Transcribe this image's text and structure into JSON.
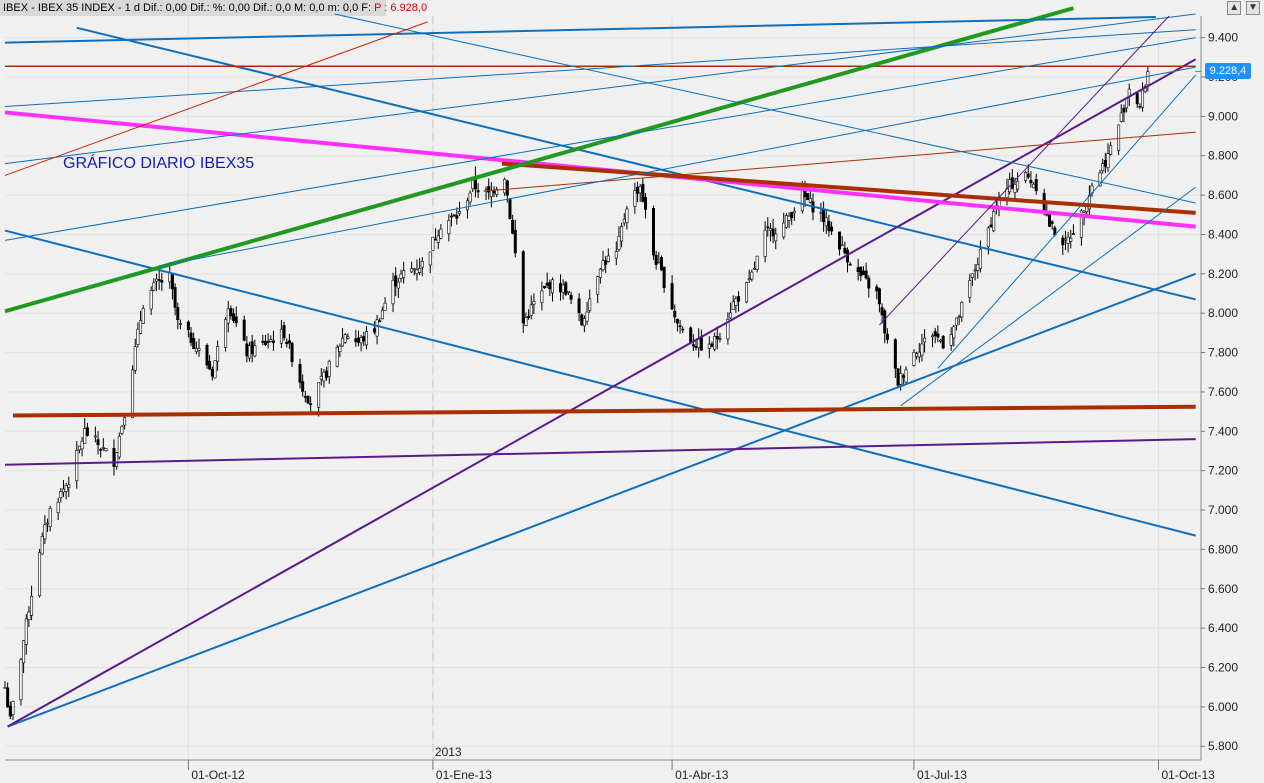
{
  "header": {
    "text": "IBEX - IBEX 35 INDEX - 1 d Dif.: 0,00 Dif.: %: 0,00 Dif.: 0,0 M: 0,0 m: 0,0 F:",
    "price_label": "P : 6.928,0"
  },
  "last_price": "9.228,4",
  "chart_title": "GRÁFICO DIARIO IBEX35",
  "year_marker": "2013",
  "chart_data": {
    "type": "candlestick",
    "title": "GRÁFICO DIARIO IBEX35",
    "x_tick_labels": [
      "01-Oct-12",
      "01-Ene-13",
      "01-Abr-13",
      "01-Jul-13",
      "01-Oct-13"
    ],
    "y_tick_labels": [
      "9.400",
      "9.200",
      "9.000",
      "8.800",
      "8.600",
      "8.400",
      "8.200",
      "8.000",
      "7.800",
      "7.600",
      "7.400",
      "7.200",
      "7.000",
      "6.800",
      "6.600",
      "6.400",
      "6.200",
      "6.000",
      "5.800"
    ],
    "y_ticks": [
      9400,
      9200,
      9000,
      8800,
      8600,
      8400,
      8200,
      8000,
      7800,
      7600,
      7400,
      7200,
      7000,
      6800,
      6600,
      6400,
      6200,
      6000,
      5800
    ],
    "ylim": [
      5730,
      9510
    ],
    "x_range": [
      "2012-07-24",
      "2013-10-17"
    ],
    "last_value": 9228.4,
    "series_anchors": [
      [
        "2012-07-24",
        6100
      ],
      [
        "2012-07-26",
        5930
      ],
      [
        "2012-08-02",
        6500
      ],
      [
        "2012-08-06",
        6800
      ],
      [
        "2012-08-10",
        7000
      ],
      [
        "2012-08-17",
        7150
      ],
      [
        "2012-08-23",
        7400
      ],
      [
        "2012-08-29",
        7320
      ],
      [
        "2012-09-03",
        7250
      ],
      [
        "2012-09-07",
        7500
      ],
      [
        "2012-09-14",
        8050
      ],
      [
        "2012-09-19",
        8150
      ],
      [
        "2012-09-24",
        8180
      ],
      [
        "2012-09-27",
        7950
      ],
      [
        "2012-10-02",
        7870
      ],
      [
        "2012-10-10",
        7700
      ],
      [
        "2012-10-16",
        8050
      ],
      [
        "2012-10-23",
        7800
      ],
      [
        "2012-10-30",
        7850
      ],
      [
        "2012-11-06",
        7900
      ],
      [
        "2012-11-13",
        7620
      ],
      [
        "2012-11-16",
        7550
      ],
      [
        "2012-11-22",
        7700
      ],
      [
        "2012-11-29",
        7900
      ],
      [
        "2012-12-04",
        7850
      ],
      [
        "2012-12-10",
        7920
      ],
      [
        "2012-12-17",
        8150
      ],
      [
        "2012-12-21",
        8200
      ],
      [
        "2012-12-28",
        8250
      ],
      [
        "2013-01-04",
        8450
      ],
      [
        "2013-01-11",
        8500
      ],
      [
        "2013-01-16",
        8650
      ],
      [
        "2013-01-22",
        8600
      ],
      [
        "2013-01-28",
        8700
      ],
      [
        "2013-02-01",
        8300
      ],
      [
        "2013-02-04",
        7950
      ],
      [
        "2013-02-08",
        8050
      ],
      [
        "2013-02-14",
        8150
      ],
      [
        "2013-02-20",
        8120
      ],
      [
        "2013-02-26",
        7950
      ],
      [
        "2013-03-05",
        8250
      ],
      [
        "2013-03-11",
        8300
      ],
      [
        "2013-03-15",
        8550
      ],
      [
        "2013-03-20",
        8650
      ],
      [
        "2013-03-25",
        8300
      ],
      [
        "2013-03-28",
        8200
      ],
      [
        "2013-04-03",
        7950
      ],
      [
        "2013-04-09",
        7850
      ],
      [
        "2013-04-15",
        7820
      ],
      [
        "2013-04-19",
        7900
      ],
      [
        "2013-04-24",
        8050
      ],
      [
        "2013-04-30",
        8150
      ],
      [
        "2013-05-06",
        8400
      ],
      [
        "2013-05-13",
        8450
      ],
      [
        "2013-05-20",
        8600
      ],
      [
        "2013-05-27",
        8500
      ],
      [
        "2013-06-03",
        8350
      ],
      [
        "2013-06-10",
        8200
      ],
      [
        "2013-06-17",
        8100
      ],
      [
        "2013-06-21",
        7850
      ],
      [
        "2013-06-25",
        7650
      ],
      [
        "2013-07-01",
        7800
      ],
      [
        "2013-07-08",
        7900
      ],
      [
        "2013-07-12",
        7850
      ],
      [
        "2013-07-17",
        7950
      ],
      [
        "2013-07-22",
        8150
      ],
      [
        "2013-07-26",
        8300
      ],
      [
        "2013-08-01",
        8550
      ],
      [
        "2013-08-06",
        8650
      ],
      [
        "2013-08-12",
        8700
      ],
      [
        "2013-08-16",
        8650
      ],
      [
        "2013-08-21",
        8450
      ],
      [
        "2013-08-27",
        8350
      ],
      [
        "2013-09-02",
        8500
      ],
      [
        "2013-09-06",
        8650
      ],
      [
        "2013-09-12",
        8800
      ],
      [
        "2013-09-17",
        9000
      ],
      [
        "2013-09-20",
        9150
      ],
      [
        "2013-09-24",
        9050
      ],
      [
        "2013-09-27",
        9228
      ]
    ],
    "trendlines": [
      {
        "color": "#0d6fbd",
        "width": 2,
        "from": [
          "2012-07-25",
          5900
        ],
        "to": [
          "2013-10-15",
          8200
        ]
      },
      {
        "color": "#0d6fbd",
        "width": 2,
        "from": [
          "2012-07-24",
          8420
        ],
        "to": [
          "2013-10-15",
          6870
        ]
      },
      {
        "color": "#0d6fbd",
        "width": 2,
        "from": [
          "2012-08-20",
          9450
        ],
        "to": [
          "2013-10-15",
          8070
        ]
      },
      {
        "color": "#5a1a8c",
        "width": 2,
        "from": [
          "2012-07-25",
          5900
        ],
        "to": [
          "2013-10-15",
          9290
        ]
      },
      {
        "color": "#5a1a8c",
        "width": 2,
        "from": [
          "2012-07-24",
          7230
        ],
        "to": [
          "2013-10-15",
          7360
        ]
      },
      {
        "color": "#ff30ff",
        "width": 4,
        "from": [
          "2012-07-24",
          9020
        ],
        "to": [
          "2013-10-15",
          8440
        ]
      },
      {
        "color": "#a83000",
        "width": 4,
        "from": [
          "2012-07-27",
          7480
        ],
        "to": [
          "2013-10-15",
          7525
        ]
      },
      {
        "color": "#a83000",
        "width": 4,
        "from": [
          "2013-01-27",
          8760
        ],
        "to": [
          "2013-10-15",
          8510
        ]
      },
      {
        "color": "#a83000",
        "width": 1.5,
        "from": [
          "2012-07-24",
          9255
        ],
        "to": [
          "2013-10-15",
          9255
        ]
      },
      {
        "color": "#a83000",
        "width": 1,
        "from": [
          "2013-01-20",
          8620
        ],
        "to": [
          "2013-10-15",
          8920
        ]
      },
      {
        "color": "#1f9a1f",
        "width": 4,
        "from": [
          "2012-07-24",
          8010
        ],
        "to": [
          "2013-08-30",
          9550
        ]
      },
      {
        "color": "#0d6fbd",
        "width": 2,
        "from": [
          "2012-07-24",
          9375
        ],
        "to": [
          "2013-09-30",
          9505
        ]
      },
      {
        "color": "#0d6fbd",
        "width": 1,
        "from": [
          "2012-07-24",
          9050
        ],
        "to": [
          "2013-10-15",
          9440
        ]
      },
      {
        "color": "#0d6fbd",
        "width": 1,
        "from": [
          "2012-07-24",
          8370
        ],
        "to": [
          "2013-10-15",
          9400
        ]
      },
      {
        "color": "#0d6fbd",
        "width": 1,
        "from": [
          "2012-07-24",
          8760
        ],
        "to": [
          "2013-10-15",
          9520
        ]
      },
      {
        "color": "#0d6fbd",
        "width": 1,
        "from": [
          "2012-09-20",
          8240
        ],
        "to": [
          "2013-10-15",
          9250
        ]
      },
      {
        "color": "#0d6fbd",
        "width": 1,
        "from": [
          "2013-06-26",
          7530
        ],
        "to": [
          "2013-10-15",
          8640
        ]
      },
      {
        "color": "#0d6fbd",
        "width": 1,
        "from": [
          "2013-07-10",
          7720
        ],
        "to": [
          "2013-10-15",
          9210
        ]
      },
      {
        "color": "#0d6fbd",
        "width": 1,
        "from": [
          "2012-11-25",
          9520
        ],
        "to": [
          "2013-10-15",
          8560
        ]
      },
      {
        "color": "#cc2200",
        "width": 1,
        "from": [
          "2012-07-24",
          8700
        ],
        "to": [
          "2012-12-30",
          9480
        ]
      },
      {
        "color": "#5a1a8c",
        "width": 1,
        "from": [
          "2013-06-18",
          7940
        ],
        "to": [
          "2013-10-05",
          9510
        ]
      }
    ]
  }
}
